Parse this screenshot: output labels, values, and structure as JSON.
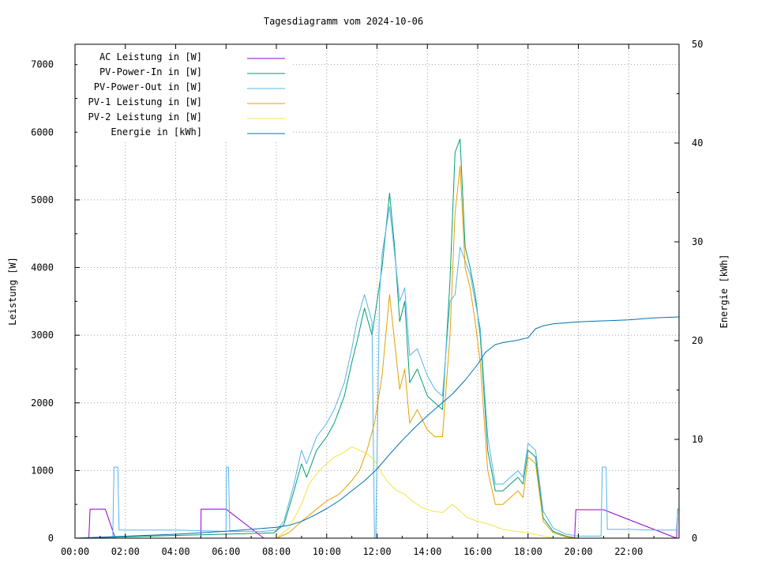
{
  "chart_data": {
    "type": "line",
    "title": "Tagesdiagramm vom 2024-10-06",
    "ylabel": "Leistung [W]",
    "y2label": "Energie [kWh]",
    "xlim": [
      0,
      24
    ],
    "ylim": [
      0,
      7300
    ],
    "y2lim": [
      0,
      50
    ],
    "xticks": [
      "00:00",
      "02:00",
      "04:00",
      "06:00",
      "08:00",
      "10:00",
      "12:00",
      "14:00",
      "16:00",
      "18:00",
      "20:00",
      "22:00"
    ],
    "yticks": [
      "0",
      "1000",
      "2000",
      "3000",
      "4000",
      "5000",
      "6000",
      "7000"
    ],
    "y2ticks": [
      "0",
      "10",
      "20",
      "30",
      "40",
      "50"
    ],
    "grid": true,
    "legend_position": "top-left",
    "series": [
      {
        "name": "AC Leistung in [W]",
        "axis": "left",
        "color": "#9400d3",
        "x": [
          0.0,
          0.55,
          0.6,
          1.2,
          1.6,
          5.0,
          5.01,
          6.0,
          7.5,
          8.0,
          8.5,
          9.0,
          9.2,
          19.85,
          19.9,
          20.0,
          20.5,
          21.0,
          23.9,
          23.95,
          24.0
        ],
        "y": [
          0,
          0,
          430,
          430,
          0,
          0,
          430,
          430,
          0,
          0,
          0,
          0,
          0,
          0,
          420,
          420,
          420,
          420,
          0,
          430,
          430
        ]
      },
      {
        "name": "PV-Power-In in [W]",
        "axis": "left",
        "color": "#009e73",
        "x": [
          0,
          7.9,
          8.3,
          8.7,
          9.0,
          9.2,
          9.6,
          10.0,
          10.3,
          10.7,
          11.0,
          11.2,
          11.5,
          11.8,
          12.2,
          12.5,
          12.7,
          12.9,
          13.1,
          13.3,
          13.6,
          14.0,
          14.3,
          14.6,
          14.9,
          15.1,
          15.3,
          15.5,
          15.7,
          15.9,
          16.1,
          16.4,
          16.7,
          17.0,
          17.3,
          17.6,
          17.8,
          18.0,
          18.3,
          18.6,
          19.0,
          19.5,
          20.0,
          24
        ],
        "y": [
          0,
          80,
          200,
          700,
          1100,
          900,
          1300,
          1500,
          1700,
          2100,
          2600,
          2900,
          3400,
          3000,
          4000,
          5100,
          4300,
          3200,
          3500,
          2300,
          2500,
          2100,
          2000,
          1900,
          3800,
          5700,
          5900,
          4300,
          4000,
          3600,
          3000,
          1300,
          700,
          700,
          800,
          900,
          800,
          1300,
          1200,
          300,
          100,
          30,
          0,
          0
        ]
      },
      {
        "name": "PV-Power-Out in [W]",
        "axis": "left",
        "color": "#56b4e9",
        "x": [
          0,
          1.5,
          1.55,
          1.7,
          1.75,
          4.0,
          5.0,
          6.0,
          6.02,
          6.1,
          6.15,
          7.5,
          8.0,
          8.3,
          8.7,
          9.0,
          9.2,
          9.6,
          10.0,
          10.3,
          10.7,
          11.0,
          11.2,
          11.5,
          11.8,
          11.9,
          11.95,
          12.1,
          12.2,
          12.5,
          12.7,
          12.9,
          13.1,
          13.3,
          13.6,
          14.0,
          14.3,
          14.6,
          14.9,
          15.1,
          15.3,
          15.5,
          15.7,
          15.9,
          16.1,
          16.4,
          16.7,
          17.0,
          17.3,
          17.6,
          17.8,
          18.0,
          18.3,
          18.6,
          19.0,
          19.5,
          20.0,
          20.9,
          20.95,
          21.1,
          21.15,
          22.0,
          23.0,
          23.9,
          23.95,
          24.0
        ],
        "y": [
          0,
          0,
          1050,
          1050,
          120,
          120,
          110,
          100,
          1050,
          1050,
          100,
          100,
          120,
          250,
          800,
          1300,
          1100,
          1500,
          1700,
          1900,
          2300,
          2800,
          3200,
          3600,
          3200,
          0,
          0,
          3600,
          4200,
          4900,
          4200,
          3500,
          3700,
          2700,
          2800,
          2400,
          2200,
          2100,
          3500,
          3600,
          4300,
          4100,
          3900,
          3500,
          3100,
          1500,
          800,
          800,
          900,
          1000,
          900,
          1400,
          1300,
          400,
          150,
          60,
          30,
          30,
          1050,
          1050,
          130,
          130,
          120,
          120,
          430,
          430
        ]
      },
      {
        "name": "PV-1 Leistung in [W]",
        "axis": "left",
        "color": "#e69f00",
        "x": [
          0,
          8.0,
          8.5,
          9.0,
          9.5,
          10.0,
          10.5,
          11.0,
          11.3,
          11.6,
          11.9,
          12.2,
          12.5,
          12.7,
          12.9,
          13.1,
          13.3,
          13.6,
          14.0,
          14.3,
          14.6,
          14.9,
          15.1,
          15.3,
          15.5,
          15.7,
          15.9,
          16.1,
          16.4,
          16.7,
          17.0,
          17.3,
          17.6,
          17.8,
          18.0,
          18.3,
          18.6,
          19.0,
          19.5,
          20.0,
          24
        ],
        "y": [
          0,
          0,
          80,
          250,
          400,
          550,
          650,
          850,
          1000,
          1300,
          1700,
          2400,
          3600,
          2900,
          2200,
          2500,
          1700,
          1900,
          1600,
          1500,
          1500,
          3000,
          4800,
          5500,
          4000,
          3700,
          3200,
          2600,
          1000,
          500,
          500,
          600,
          700,
          600,
          1200,
          1100,
          250,
          80,
          20,
          0,
          0
        ]
      },
      {
        "name": "PV-2 Leistung in [W]",
        "axis": "left",
        "color": "#f0e442",
        "x": [
          0,
          8.0,
          8.5,
          9.0,
          9.3,
          9.7,
          10.0,
          10.3,
          10.6,
          11.0,
          11.3,
          11.6,
          11.9,
          12.2,
          12.5,
          12.8,
          13.1,
          13.4,
          13.8,
          14.2,
          14.6,
          15.0,
          15.3,
          15.6,
          16.0,
          16.5,
          17.0,
          17.5,
          18.0,
          18.5,
          19.0,
          24
        ],
        "y": [
          0,
          0,
          150,
          500,
          800,
          1000,
          1100,
          1200,
          1250,
          1350,
          1300,
          1250,
          1150,
          950,
          800,
          700,
          650,
          550,
          450,
          400,
          380,
          500,
          400,
          300,
          250,
          200,
          130,
          100,
          80,
          40,
          0,
          0
        ]
      },
      {
        "name": "Energie in [kWh]",
        "axis": "right",
        "color": "#0072b2",
        "x": [
          0,
          1.0,
          2.0,
          4.0,
          6.0,
          7.0,
          8.0,
          8.5,
          9.0,
          9.5,
          10.0,
          10.5,
          11.0,
          11.5,
          12.0,
          12.5,
          13.0,
          13.5,
          14.0,
          14.5,
          15.0,
          15.5,
          16.0,
          16.3,
          16.7,
          17.0,
          17.5,
          18.0,
          18.3,
          18.6,
          19.0,
          20.0,
          21.0,
          22.0,
          23.0,
          24.0
        ],
        "y": [
          0,
          0.1,
          0.2,
          0.4,
          0.7,
          0.9,
          1.1,
          1.3,
          1.7,
          2.3,
          3.0,
          3.8,
          4.8,
          5.8,
          7.0,
          8.5,
          9.9,
          11.2,
          12.4,
          13.5,
          14.6,
          16.0,
          17.6,
          18.8,
          19.6,
          19.8,
          20.0,
          20.3,
          21.2,
          21.5,
          21.7,
          21.9,
          22.0,
          22.1,
          22.3,
          22.4
        ]
      }
    ]
  }
}
